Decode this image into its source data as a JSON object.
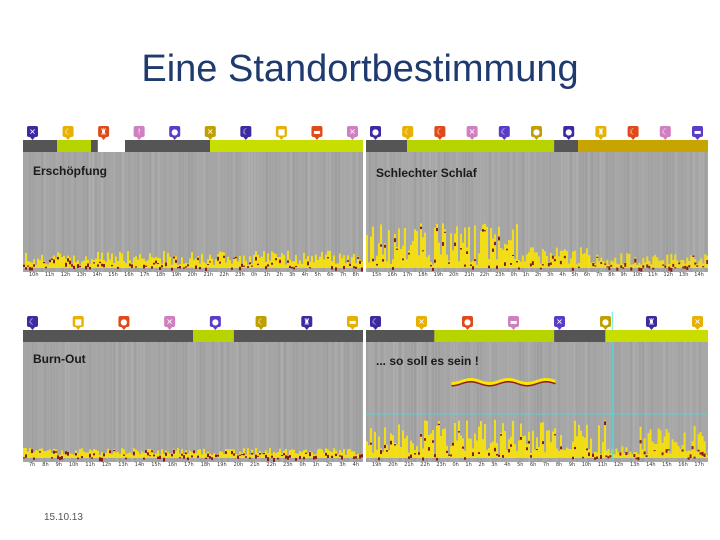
{
  "title": "Eine Standortbestimmung",
  "date": "15.10.13",
  "colors": {
    "title": "#1f3a6e",
    "activity_bar_dark": "#555555",
    "activity_bar_green": "#b7d400",
    "activity_bar_gold": "#c8a400",
    "spectrogram_bg": "#a6a6a6",
    "hot_yellow": "#ffe600",
    "hot_red": "#8b1a1a"
  },
  "panels": [
    {
      "label": "Erschöpfung",
      "ticks": [
        "10h",
        "11h",
        "12h",
        "13h",
        "14h",
        "15h",
        "16h",
        "17h",
        "18h",
        "19h",
        "20h",
        "21h",
        "22h",
        "23h",
        "0h",
        "1h",
        "2h",
        "3h",
        "4h",
        "5h",
        "6h",
        "7h",
        "8h"
      ],
      "icons": [
        "sport-icon",
        "sleep-icon",
        "exercise-icon",
        "warning-icon",
        "lamp-icon",
        "sport-icon",
        "sleep-icon",
        "work-icon",
        "bed-icon",
        "sport-icon"
      ]
    },
    {
      "label": "Schlechter Schlaf",
      "ticks": [
        "15h",
        "16h",
        "17h",
        "18h",
        "19h",
        "20h",
        "21h",
        "22h",
        "23h",
        "0h",
        "1h",
        "2h",
        "3h",
        "4h",
        "5h",
        "6h",
        "7h",
        "8h",
        "9h",
        "10h",
        "11h",
        "12h",
        "13h",
        "14h"
      ],
      "icons": [
        "lamp-icon",
        "sleep-icon",
        "sleep-icon",
        "sport-icon",
        "sleep-icon",
        "lamp-icon",
        "lamp-icon",
        "exercise-icon",
        "sleep-icon",
        "sleep-icon",
        "bed-icon"
      ]
    },
    {
      "label": "Burn-Out",
      "ticks": [
        "7h",
        "8h",
        "9h",
        "10h",
        "11h",
        "12h",
        "13h",
        "14h",
        "15h",
        "16h",
        "17h",
        "18h",
        "19h",
        "20h",
        "21h",
        "22h",
        "23h",
        "0h",
        "1h",
        "2h",
        "3h",
        "4h"
      ],
      "icons": [
        "sleep-icon",
        "work-icon",
        "lamp-icon",
        "sport-icon",
        "lamp-icon",
        "sleep-icon",
        "exercise-icon",
        "bed-icon"
      ]
    },
    {
      "label": "... so soll es sein !",
      "ticks": [
        "19h",
        "20h",
        "21h",
        "22h",
        "23h",
        "0h",
        "1h",
        "2h",
        "3h",
        "4h",
        "5h",
        "6h",
        "7h",
        "8h",
        "9h",
        "10h",
        "11h",
        "12h",
        "13h",
        "14h",
        "15h",
        "16h",
        "17h"
      ],
      "icons": [
        "sleep-icon",
        "sport-icon",
        "lamp-icon",
        "bed-icon",
        "sport-icon",
        "lamp-icon",
        "exercise-icon",
        "sport-icon"
      ]
    }
  ]
}
